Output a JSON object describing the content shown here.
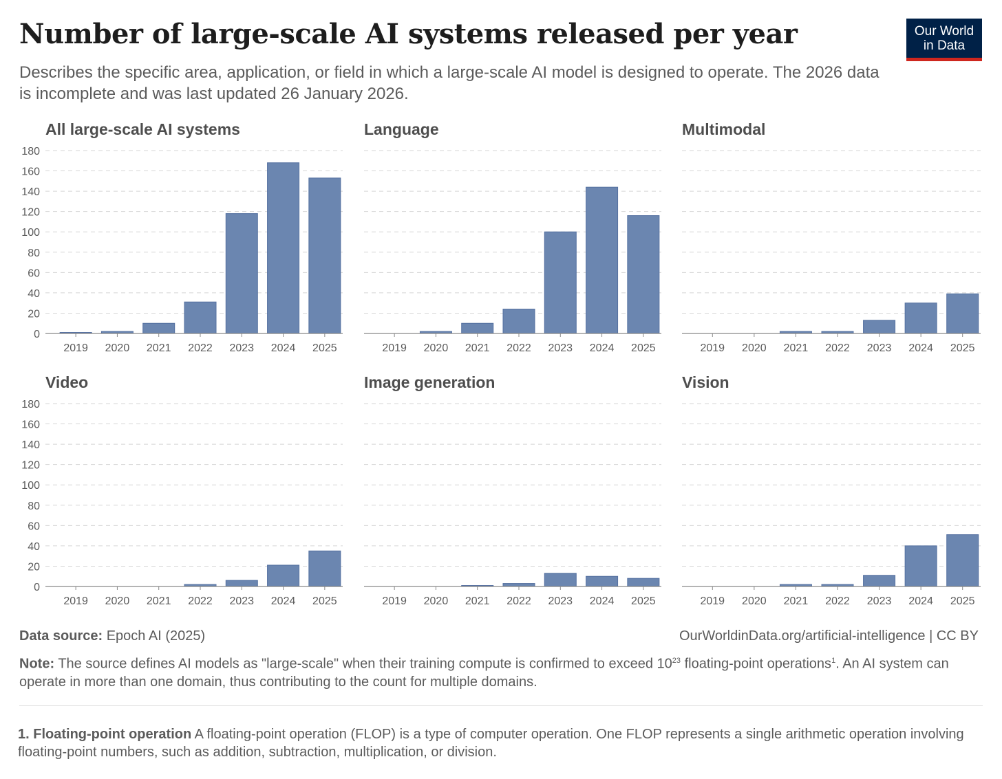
{
  "header": {
    "title": "Number of large-scale AI systems released per year",
    "subtitle": "Describes the specific area, application, or field in which a large-scale AI model is designed to operate. The 2026 data is incomplete and was last updated 26 January 2026.",
    "logo_line1": "Our World",
    "logo_line2": "in Data"
  },
  "colors": {
    "bar": "#6b86b0",
    "bar_stroke": "#5470a0",
    "grid": "#d5d5d5",
    "axis": "#888888"
  },
  "chart_data": [
    {
      "type": "bar",
      "title": "All large-scale AI systems",
      "categories": [
        "2019",
        "2020",
        "2021",
        "2022",
        "2023",
        "2024",
        "2025"
      ],
      "values": [
        1,
        2,
        10,
        31,
        118,
        168,
        153
      ],
      "ylim": [
        0,
        180
      ],
      "yticks": [
        "0",
        "20",
        "40",
        "60",
        "80",
        "100",
        "120",
        "140",
        "160",
        "180"
      ]
    },
    {
      "type": "bar",
      "title": "Language",
      "categories": [
        "2019",
        "2020",
        "2021",
        "2022",
        "2023",
        "2024",
        "2025"
      ],
      "values": [
        0,
        2,
        10,
        24,
        100,
        144,
        116
      ],
      "ylim": [
        0,
        180
      ]
    },
    {
      "type": "bar",
      "title": "Multimodal",
      "categories": [
        "2019",
        "2020",
        "2021",
        "2022",
        "2023",
        "2024",
        "2025"
      ],
      "values": [
        0,
        0,
        2,
        2,
        13,
        30,
        39
      ],
      "ylim": [
        0,
        180
      ]
    },
    {
      "type": "bar",
      "title": "Video",
      "categories": [
        "2019",
        "2020",
        "2021",
        "2022",
        "2023",
        "2024",
        "2025"
      ],
      "values": [
        0,
        0,
        0,
        2,
        6,
        21,
        35
      ],
      "ylim": [
        0,
        180
      ],
      "yticks": [
        "0",
        "20",
        "40",
        "60",
        "80",
        "100",
        "120",
        "140",
        "160",
        "180"
      ]
    },
    {
      "type": "bar",
      "title": "Image generation",
      "categories": [
        "2019",
        "2020",
        "2021",
        "2022",
        "2023",
        "2024",
        "2025"
      ],
      "values": [
        0,
        0,
        1,
        3,
        13,
        10,
        8
      ],
      "ylim": [
        0,
        180
      ]
    },
    {
      "type": "bar",
      "title": "Vision",
      "categories": [
        "2019",
        "2020",
        "2021",
        "2022",
        "2023",
        "2024",
        "2025"
      ],
      "values": [
        0,
        0,
        2,
        2,
        11,
        40,
        51
      ],
      "ylim": [
        0,
        180
      ]
    }
  ],
  "footer": {
    "source_label": "Data source:",
    "source": "Epoch AI (2025)",
    "url": "OurWorldinData.org/artificial-intelligence | CC BY",
    "note_label": "Note:",
    "note_a": "The source defines AI models as \"large-scale\" when their training compute is confirmed to exceed 10",
    "note_exp": "23",
    "note_b": " floating-point operations",
    "note_ref": "1",
    "note_c": ". An AI system can operate in more than one domain, thus contributing to the count for multiple domains.",
    "fn_label": "1. Floating-point operation",
    "fn_text": " A floating-point operation (FLOP) is a type of computer operation. One FLOP represents a single arithmetic operation involving floating-point numbers, such as addition, subtraction, multiplication, or division."
  }
}
